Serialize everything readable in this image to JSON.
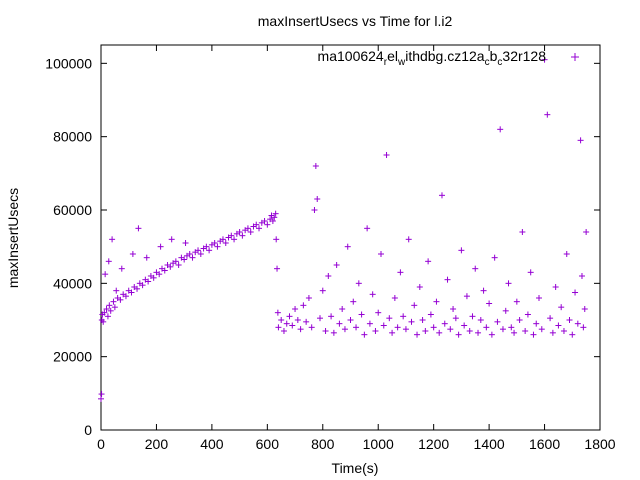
{
  "chart_data": {
    "type": "scatter",
    "title": "maxInsertUsecs vs Time for l.i2",
    "xlabel": "Time(s)",
    "ylabel": "maxInsertUsecs",
    "xlim": [
      0,
      1800
    ],
    "ylim": [
      0,
      105000
    ],
    "xticks": [
      0,
      200,
      400,
      600,
      800,
      1000,
      1200,
      1400,
      1600,
      1800
    ],
    "xtick_labels": [
      "0",
      "200",
      "400",
      "600",
      "800",
      "1000",
      "1200",
      "1400",
      "1600",
      "1800"
    ],
    "yticks": [
      0,
      20000,
      40000,
      60000,
      80000,
      100000
    ],
    "ytick_labels": [
      "0",
      "20000",
      "40000",
      "60000",
      "80000",
      "100000"
    ],
    "legend_position": "top-right",
    "series": [
      {
        "name": "ma100624_rel_withdbg.cz12a_c_b_c_32r128",
        "legend": {
          "base": "ma100624",
          "parts": [
            {
              "sub": "r",
              "text": "el"
            },
            {
              "sub": "w",
              "text": "ithdbg.cz12a"
            },
            {
              "sub": "c",
              "text": "b"
            },
            {
              "sub": "c",
              "text": "32r128"
            }
          ]
        },
        "color": "#9400d3",
        "marker": "+",
        "points": [
          [
            0,
            8500
          ],
          [
            2,
            9800
          ],
          [
            3,
            30000
          ],
          [
            5,
            31500
          ],
          [
            8,
            29500
          ],
          [
            12,
            32000
          ],
          [
            15,
            42500
          ],
          [
            20,
            33000
          ],
          [
            25,
            31000
          ],
          [
            28,
            46000
          ],
          [
            30,
            34000
          ],
          [
            35,
            32500
          ],
          [
            40,
            52000
          ],
          [
            45,
            35000
          ],
          [
            50,
            33500
          ],
          [
            55,
            38000
          ],
          [
            60,
            36000
          ],
          [
            70,
            35500
          ],
          [
            75,
            44000
          ],
          [
            80,
            37000
          ],
          [
            90,
            36500
          ],
          [
            100,
            38000
          ],
          [
            110,
            37500
          ],
          [
            115,
            48000
          ],
          [
            120,
            39000
          ],
          [
            130,
            38500
          ],
          [
            135,
            55000
          ],
          [
            140,
            40000
          ],
          [
            150,
            39500
          ],
          [
            160,
            41000
          ],
          [
            165,
            47000
          ],
          [
            170,
            40500
          ],
          [
            180,
            42000
          ],
          [
            190,
            41500
          ],
          [
            200,
            43000
          ],
          [
            210,
            42500
          ],
          [
            215,
            50000
          ],
          [
            220,
            44000
          ],
          [
            230,
            43500
          ],
          [
            240,
            45000
          ],
          [
            250,
            44500
          ],
          [
            255,
            52000
          ],
          [
            260,
            45500
          ],
          [
            270,
            46000
          ],
          [
            280,
            45000
          ],
          [
            290,
            47000
          ],
          [
            300,
            46500
          ],
          [
            305,
            51000
          ],
          [
            310,
            47500
          ],
          [
            320,
            48000
          ],
          [
            330,
            47000
          ],
          [
            340,
            48500
          ],
          [
            350,
            49000
          ],
          [
            360,
            48000
          ],
          [
            370,
            49500
          ],
          [
            380,
            50000
          ],
          [
            390,
            49000
          ],
          [
            400,
            50500
          ],
          [
            410,
            51000
          ],
          [
            420,
            50000
          ],
          [
            430,
            51500
          ],
          [
            440,
            52000
          ],
          [
            450,
            51000
          ],
          [
            460,
            52500
          ],
          [
            470,
            53000
          ],
          [
            480,
            52000
          ],
          [
            490,
            53500
          ],
          [
            500,
            54000
          ],
          [
            510,
            53000
          ],
          [
            520,
            54500
          ],
          [
            530,
            55000
          ],
          [
            540,
            54000
          ],
          [
            550,
            55500
          ],
          [
            560,
            56000
          ],
          [
            570,
            55000
          ],
          [
            580,
            56500
          ],
          [
            590,
            57000
          ],
          [
            600,
            56000
          ],
          [
            610,
            57500
          ],
          [
            615,
            58500
          ],
          [
            620,
            57000
          ],
          [
            625,
            58000
          ],
          [
            630,
            59000
          ],
          [
            632,
            52000
          ],
          [
            635,
            44000
          ],
          [
            638,
            32000
          ],
          [
            640,
            28000
          ],
          [
            650,
            30000
          ],
          [
            660,
            27000
          ],
          [
            670,
            29000
          ],
          [
            680,
            31000
          ],
          [
            690,
            28500
          ],
          [
            700,
            33000
          ],
          [
            710,
            30000
          ],
          [
            720,
            27500
          ],
          [
            730,
            34000
          ],
          [
            740,
            29500
          ],
          [
            750,
            36000
          ],
          [
            760,
            28000
          ],
          [
            770,
            60000
          ],
          [
            775,
            72000
          ],
          [
            780,
            63000
          ],
          [
            790,
            30500
          ],
          [
            800,
            38000
          ],
          [
            810,
            27000
          ],
          [
            820,
            42000
          ],
          [
            830,
            31000
          ],
          [
            840,
            26500
          ],
          [
            850,
            45000
          ],
          [
            860,
            29000
          ],
          [
            870,
            33000
          ],
          [
            880,
            27500
          ],
          [
            890,
            50000
          ],
          [
            900,
            30000
          ],
          [
            910,
            35000
          ],
          [
            920,
            28000
          ],
          [
            930,
            40000
          ],
          [
            940,
            31500
          ],
          [
            950,
            26000
          ],
          [
            960,
            55000
          ],
          [
            970,
            29000
          ],
          [
            980,
            37000
          ],
          [
            990,
            27000
          ],
          [
            1000,
            32000
          ],
          [
            1010,
            48000
          ],
          [
            1020,
            28500
          ],
          [
            1030,
            75000
          ],
          [
            1040,
            30500
          ],
          [
            1050,
            26500
          ],
          [
            1060,
            36000
          ],
          [
            1070,
            28000
          ],
          [
            1080,
            43000
          ],
          [
            1090,
            31000
          ],
          [
            1100,
            27500
          ],
          [
            1110,
            52000
          ],
          [
            1120,
            29500
          ],
          [
            1130,
            34000
          ],
          [
            1140,
            26000
          ],
          [
            1150,
            39000
          ],
          [
            1160,
            30000
          ],
          [
            1170,
            27000
          ],
          [
            1180,
            46000
          ],
          [
            1190,
            31500
          ],
          [
            1200,
            28000
          ],
          [
            1210,
            35000
          ],
          [
            1220,
            26500
          ],
          [
            1230,
            64000
          ],
          [
            1240,
            29000
          ],
          [
            1250,
            41000
          ],
          [
            1260,
            27500
          ],
          [
            1270,
            33000
          ],
          [
            1280,
            30500
          ],
          [
            1290,
            26000
          ],
          [
            1300,
            49000
          ],
          [
            1310,
            28500
          ],
          [
            1320,
            36500
          ],
          [
            1330,
            27000
          ],
          [
            1340,
            31000
          ],
          [
            1350,
            44000
          ],
          [
            1360,
            26500
          ],
          [
            1370,
            30000
          ],
          [
            1380,
            38000
          ],
          [
            1390,
            28000
          ],
          [
            1400,
            34500
          ],
          [
            1410,
            26000
          ],
          [
            1420,
            47000
          ],
          [
            1430,
            29500
          ],
          [
            1440,
            82000
          ],
          [
            1450,
            27500
          ],
          [
            1460,
            32500
          ],
          [
            1470,
            40000
          ],
          [
            1480,
            28000
          ],
          [
            1490,
            26500
          ],
          [
            1500,
            35000
          ],
          [
            1510,
            30000
          ],
          [
            1520,
            54000
          ],
          [
            1530,
            27000
          ],
          [
            1540,
            31500
          ],
          [
            1550,
            43000
          ],
          [
            1560,
            26000
          ],
          [
            1570,
            29000
          ],
          [
            1580,
            36000
          ],
          [
            1590,
            27500
          ],
          [
            1600,
            101000
          ],
          [
            1610,
            86000
          ],
          [
            1620,
            30500
          ],
          [
            1630,
            26500
          ],
          [
            1640,
            39000
          ],
          [
            1650,
            28500
          ],
          [
            1660,
            33500
          ],
          [
            1670,
            27000
          ],
          [
            1680,
            48000
          ],
          [
            1690,
            30000
          ],
          [
            1700,
            26000
          ],
          [
            1710,
            37500
          ],
          [
            1720,
            29000
          ],
          [
            1730,
            79000
          ],
          [
            1735,
            42000
          ],
          [
            1740,
            28000
          ],
          [
            1745,
            33000
          ],
          [
            1750,
            54000
          ]
        ]
      }
    ]
  }
}
